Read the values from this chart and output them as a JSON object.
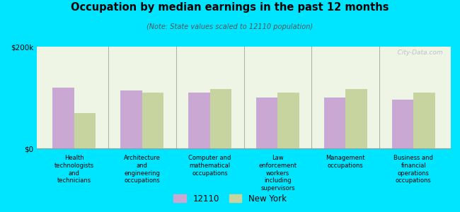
{
  "title": "Occupation by median earnings in the past 12 months",
  "subtitle": "(Note: State values scaled to 12110 population)",
  "categories": [
    "Health\ntechnologists\nand\ntechnicians",
    "Architecture\nand\nengineering\noccupations",
    "Computer and\nmathematical\noccupations",
    "Law\nenforcement\nworkers\nincluding\nsupervisors",
    "Management\noccupations",
    "Business and\nfinancial\noperations\noccupations"
  ],
  "values_12110": [
    120000,
    114000,
    110000,
    100000,
    100000,
    96000
  ],
  "values_ny": [
    70000,
    110000,
    116000,
    110000,
    116000,
    110000
  ],
  "ylim": [
    0,
    200000
  ],
  "ytick_labels": [
    "$0",
    "$200k"
  ],
  "color_12110": "#c9a8d4",
  "color_ny": "#c8d4a0",
  "background_color": "#00e5ff",
  "plot_bg_color": "#eef5e4",
  "legend_label_12110": "12110",
  "legend_label_ny": "New York",
  "watermark": "   City-Data.com"
}
